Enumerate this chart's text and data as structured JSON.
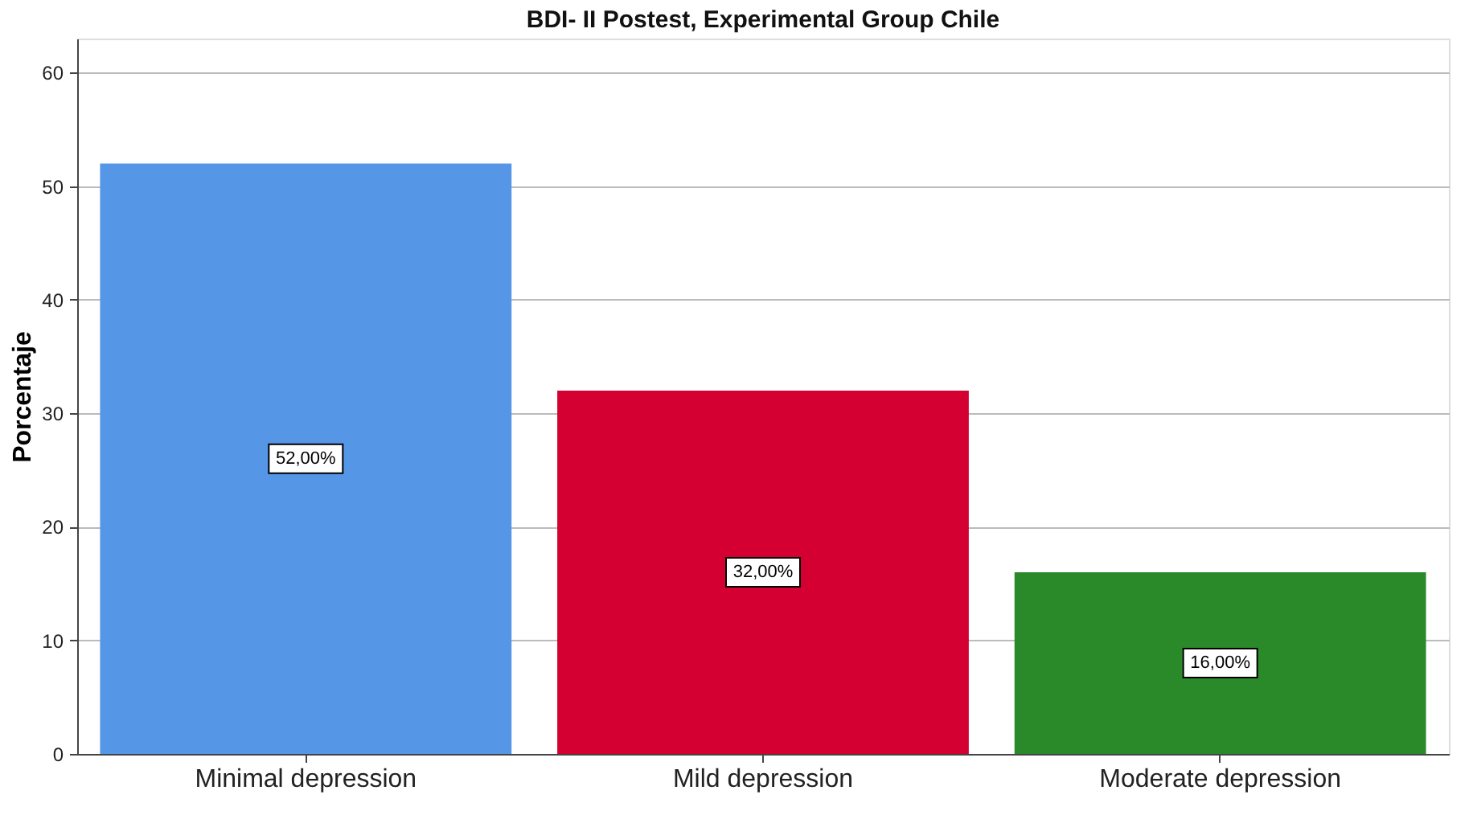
{
  "chart_data": {
    "type": "bar",
    "title": "BDI- II Postest, Experimental Group Chile",
    "ylabel": "Porcentaje",
    "categories": [
      "Minimal depression",
      "Mild depression",
      "Moderate depression"
    ],
    "values": [
      52,
      32,
      16
    ],
    "colors": [
      "#5596e6",
      "#d50032",
      "#2a8a2a"
    ],
    "value_labels": [
      "52,00%",
      "32,00%",
      "16,00%"
    ],
    "ylim": [
      0,
      63
    ],
    "yticks": [
      0,
      10,
      20,
      30,
      40,
      50,
      60
    ],
    "grid": "y"
  }
}
